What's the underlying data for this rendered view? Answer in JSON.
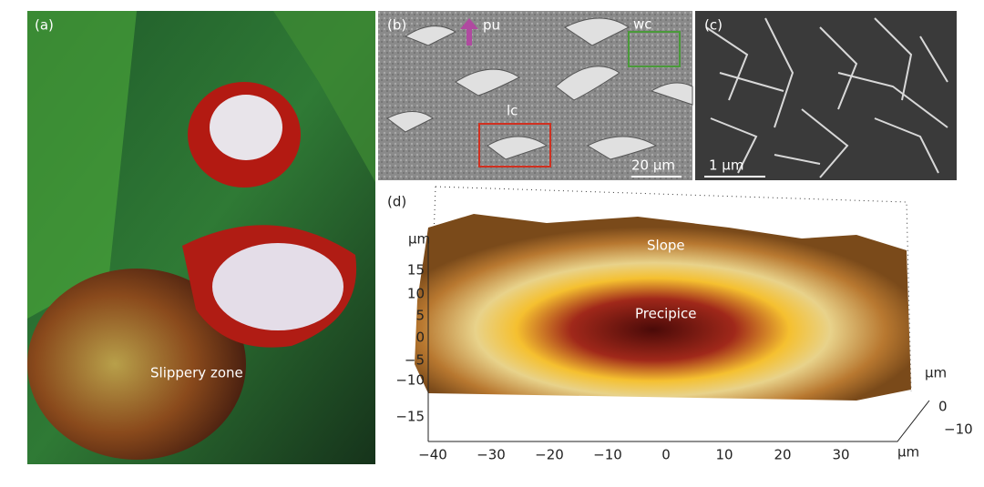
{
  "panel_a": {
    "label": "(a)",
    "annotation": "Slippery zone"
  },
  "panel_b": {
    "label": "(b)",
    "arrow_label": "pu",
    "box_wc": "wc",
    "box_lc": "lc",
    "scale_bar": "20 µm"
  },
  "panel_c": {
    "label": "(c)",
    "scale_bar": "1 µm"
  },
  "panel_d": {
    "label": "(d)",
    "annotation_top": "Slope",
    "annotation_center": "Precipice",
    "z_axis": {
      "unit": "µm",
      "ticks": [
        "15",
        "10",
        "5",
        "0",
        "−5",
        "−10",
        "−15"
      ]
    },
    "x_axis": {
      "ticks": [
        "−40",
        "−30",
        "−20",
        "−10",
        "0",
        "10",
        "20",
        "30"
      ],
      "unit": "µm"
    },
    "y_axis": {
      "unit": "µm",
      "ticks": [
        "0",
        "−10"
      ]
    }
  }
}
